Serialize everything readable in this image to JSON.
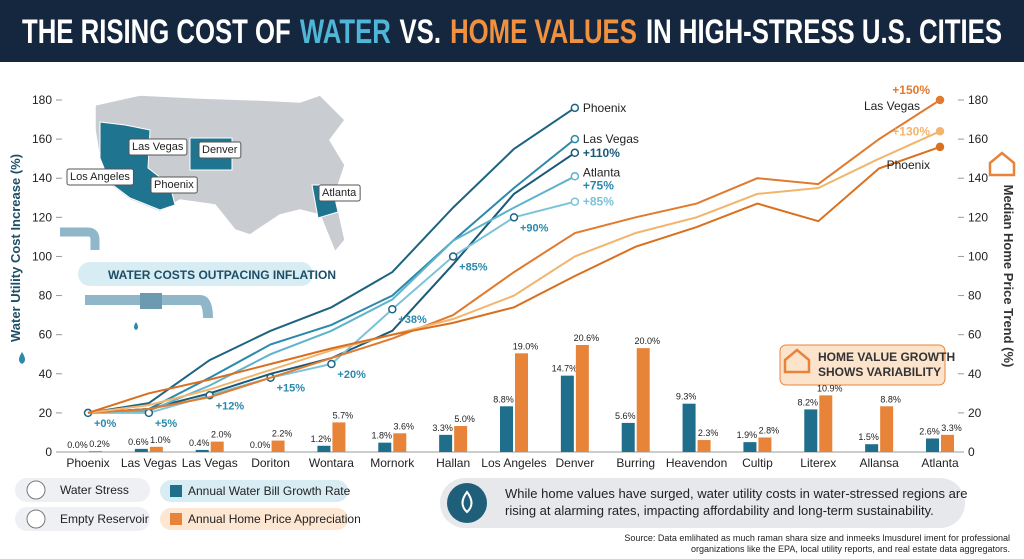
{
  "chart_data": {
    "type": "combo",
    "title": [
      "THE RISING COST OF",
      "WATER",
      "VS.",
      "HOME VALUES",
      "IN HIGH-STRESS U.S. CITIES"
    ],
    "y_label": "Water Utility Cost Increase (%)",
    "y2_label": "Median Home Price Trend (%)",
    "categories": [
      "Phoenix",
      "Las Vegas",
      "Las Vegas",
      "Doriton",
      "Wontara",
      "Mornork",
      "Hallan",
      "Los Angeles",
      "Denver",
      "Burring",
      "Heavendon",
      "Cultip",
      "Literex",
      "Allansa",
      "Atlanta"
    ],
    "ylim": [
      0,
      180
    ],
    "yticks": [
      0,
      20,
      40,
      60,
      80,
      100,
      120,
      140,
      160,
      180
    ],
    "y2lim": [
      0,
      180
    ],
    "y2ticks": [
      0,
      20,
      40,
      60,
      80,
      100,
      120,
      140,
      160,
      180
    ],
    "series": [
      {
        "name": "Annual Water Bill Growth Rate",
        "type": "bar",
        "color": "#1f6e8c",
        "values": [
          0.0,
          0.6,
          0.4,
          0.0,
          1.2,
          1.8,
          3.3,
          8.8,
          14.7,
          5.6,
          9.3,
          1.9,
          8.2,
          1.5,
          2.6
        ],
        "value_labels": [
          "0.0%",
          "0.6%",
          "0.4%",
          "0.0%",
          "1.2%",
          "1.8%",
          "3.3%",
          "8.8%",
          "14.7%",
          "5.6%",
          "9.3%",
          "1.9%",
          "8.2%",
          "1.5%",
          "2.6%"
        ]
      },
      {
        "name": "Annual Home Price Appreciation",
        "type": "bar",
        "color": "#e8843a",
        "values": [
          0.2,
          1.0,
          2.0,
          2.2,
          5.7,
          3.6,
          5.0,
          19.0,
          20.6,
          20.0,
          2.3,
          2.8,
          10.9,
          8.8,
          3.3
        ],
        "value_labels": [
          "0.2%",
          "1.0%",
          "2.0%",
          "2.2%",
          "5.7%",
          "3.6%",
          "5.0%",
          "19.0%",
          "20.6%",
          "20.0%",
          "2.3%",
          "2.8%",
          "10.9%",
          "8.8%",
          "3.3%"
        ]
      },
      {
        "name": "Phoenix",
        "type": "line",
        "axis": "y",
        "color": "#1d6382",
        "values": [
          20,
          25,
          47,
          62,
          74,
          92,
          125,
          155,
          176,
          null,
          null,
          null,
          null,
          null,
          null
        ]
      },
      {
        "name": "Las Vegas",
        "type": "line",
        "axis": "y",
        "color": "#2b89ab",
        "values": [
          20,
          22,
          38,
          55,
          65,
          80,
          108,
          135,
          160,
          null,
          null,
          null,
          null,
          null,
          null
        ]
      },
      {
        "name": "+110%",
        "type": "line",
        "axis": "y",
        "color": "#1a5a78",
        "values": [
          20,
          22,
          30,
          40,
          48,
          62,
          96,
          132,
          153,
          null,
          null,
          null,
          null,
          null,
          null
        ]
      },
      {
        "name": "Atlanta",
        "type": "line",
        "axis": "y",
        "color": "#5fb3cc",
        "note": "+75%",
        "values": [
          20,
          21,
          34,
          50,
          62,
          78,
          108,
          125,
          141,
          null,
          null,
          null,
          null,
          null,
          null
        ]
      },
      {
        "name": "+85%",
        "type": "line",
        "axis": "y",
        "color": "#7cc3d8",
        "values": [
          20,
          20,
          29,
          38,
          45,
          73,
          100,
          120,
          128,
          null,
          null,
          null,
          null,
          null,
          null
        ],
        "point_labels": [
          "+0%",
          "+5%",
          "+12%",
          "+15%",
          "+20%",
          "+38%",
          "+85%",
          "+90%",
          null,
          null,
          null,
          null,
          null,
          null,
          null
        ]
      },
      {
        "name": "Las Vegas",
        "type": "line",
        "axis": "y2",
        "color": "#e07a2e",
        "note": "+150%",
        "values": [
          20,
          22,
          28,
          38,
          48,
          58,
          70,
          92,
          112,
          120,
          127,
          140,
          137,
          160,
          180
        ]
      },
      {
        "name": "+130%",
        "type": "line",
        "axis": "y2",
        "color": "#f2b56e",
        "values": [
          20,
          24,
          32,
          42,
          52,
          60,
          68,
          80,
          100,
          112,
          120,
          132,
          135,
          150,
          164
        ]
      },
      {
        "name": "Phoenix",
        "type": "line",
        "axis": "y2",
        "color": "#d9701f",
        "values": [
          20,
          30,
          37,
          45,
          53,
          60,
          66,
          74,
          90,
          105,
          115,
          127,
          118,
          145,
          156
        ]
      }
    ],
    "map_labels": [
      "Las Vegas",
      "Denver",
      "Los Angeles",
      "Phoenix",
      "Atlanta"
    ],
    "callouts": [
      "WATER COSTS OUTPACING INFLATION",
      "HOME VALUE GROWTH",
      "SHOWS VARIABILITY"
    ],
    "key": [
      "Water Stress",
      "Empty Reservoir"
    ],
    "info": [
      "While home values have surged, water utility costs in water-stressed regions are",
      "rising at alarming rates, impacting affordability and long-term sustainability."
    ],
    "source": [
      "Source: Data emlihated as much raman shara size and inmeeks lmusdurel iment for professional",
      "organizations like the EPA, local utility reports, and real estate data aggregators."
    ]
  }
}
